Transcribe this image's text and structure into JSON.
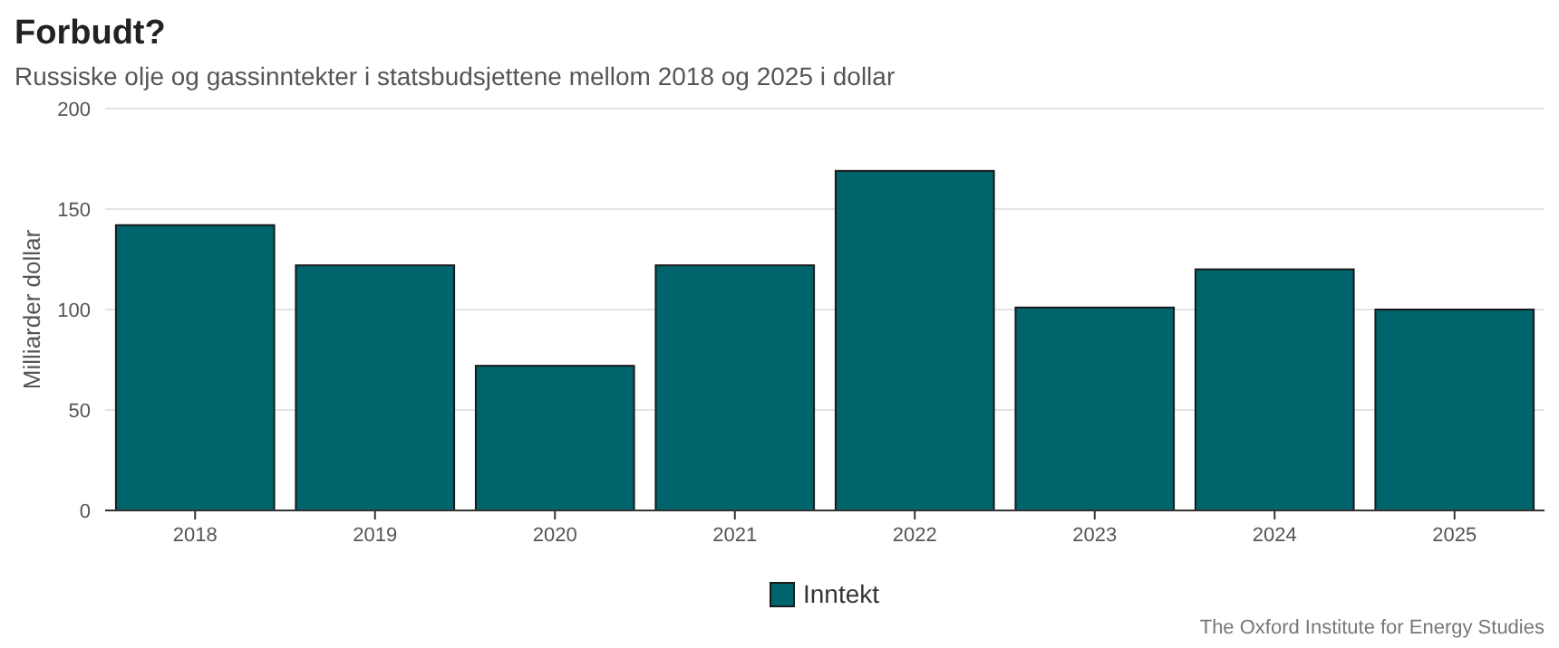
{
  "chart_data": {
    "type": "bar",
    "title": "Forbudt?",
    "subtitle": "Russiske olje og gassinntekter i statsbudsjettene mellom 2018 og 2025 i dollar",
    "ylabel": "Milliarder dollar",
    "categories": [
      "2018",
      "2019",
      "2020",
      "2021",
      "2022",
      "2023",
      "2024",
      "2025"
    ],
    "series": [
      {
        "name": "Inntekt",
        "color": "#00646c",
        "values": [
          142,
          122,
          72,
          122,
          169,
          101,
          120,
          100
        ]
      }
    ],
    "ylim": [
      0,
      200
    ],
    "yticks": [
      0,
      50,
      100,
      150,
      200
    ],
    "grid": "y",
    "legend": "bottom",
    "annotations": [
      "The Oxford Institute for Energy Studies"
    ]
  }
}
